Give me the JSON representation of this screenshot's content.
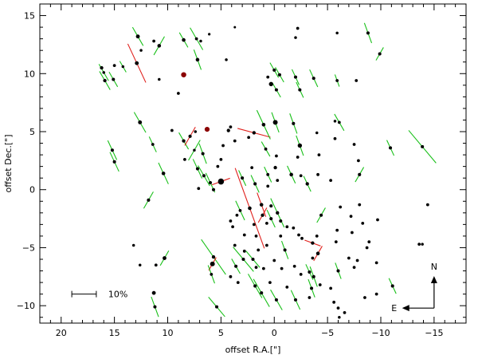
{
  "chart_data": {
    "type": "scatter",
    "title": "",
    "xlabel": "offset R.A.[\"]",
    "ylabel": "offset Dec.[\"]",
    "xlim": [
      22,
      -18
    ],
    "ylim": [
      -11.5,
      16
    ],
    "x_reversed": true,
    "x_ticks": [
      20,
      15,
      10,
      5,
      0,
      -5,
      -10,
      -15
    ],
    "y_ticks": [
      -10,
      -5,
      0,
      5,
      10,
      15
    ],
    "x_tick_labels": [
      "20",
      "15",
      "10",
      "5",
      "0",
      "−5",
      "−10",
      "−15"
    ],
    "y_tick_labels": [
      "−10",
      "−5",
      "0",
      "5",
      "10",
      "15"
    ],
    "grid": false,
    "colors": {
      "star": "#000000",
      "highlight": "#8b0000",
      "green_vector": "#19c019",
      "red_vector": "#e0201c"
    },
    "scale_bar": {
      "label": "10%",
      "length_arcsec": 2.3,
      "x": 18.0,
      "y": -9.0
    },
    "compass": {
      "north": "N",
      "east": "E",
      "x": -15.0,
      "y": -10.0,
      "length_arcsec": 3.0
    },
    "points": [
      {
        "x": 16.2,
        "y": 10.5,
        "size": 1.6
      },
      {
        "x": 15.9,
        "y": 9.4,
        "size": 1.6,
        "pol": 2.0,
        "angle": 120,
        "color": "green"
      },
      {
        "x": 15.0,
        "y": 10.7,
        "size": 1.4
      },
      {
        "x": 15.1,
        "y": 9.5,
        "size": 1.5,
        "pol": 1.6,
        "angle": 120,
        "color": "green"
      },
      {
        "x": 14.2,
        "y": 10.6,
        "size": 1.3,
        "pol": 1.2,
        "angle": 120,
        "color": "green"
      },
      {
        "x": 16.0,
        "y": 10.1,
        "size": 1.3,
        "pol": 1.8,
        "angle": 120,
        "color": "green"
      },
      {
        "x": 12.8,
        "y": 13.2,
        "size": 1.8,
        "pol": 2.0,
        "angle": 120,
        "color": "green"
      },
      {
        "x": 12.9,
        "y": 10.9,
        "size": 1.8,
        "pol": 4.0,
        "angle": 115,
        "color": "red"
      },
      {
        "x": 11.3,
        "y": 12.8,
        "size": 1.4
      },
      {
        "x": 10.8,
        "y": 12.4,
        "size": 1.7,
        "pol": 2.0,
        "angle": 60,
        "color": "green"
      },
      {
        "x": 8.5,
        "y": 12.9,
        "size": 1.7,
        "pol": 1.6,
        "angle": 120,
        "color": "green"
      },
      {
        "x": 7.3,
        "y": 13.0,
        "size": 1.4,
        "pol": 2.4,
        "angle": 120,
        "color": "green"
      },
      {
        "x": 6.9,
        "y": 12.8,
        "size": 1.3
      },
      {
        "x": 6.1,
        "y": 13.4,
        "size": 1.2
      },
      {
        "x": 4.5,
        "y": 11.2,
        "size": 1.3
      },
      {
        "x": 3.7,
        "y": 14.0,
        "size": 1.1
      },
      {
        "x": 8.5,
        "y": 9.9,
        "size": 2.4,
        "dark": true
      },
      {
        "x": 7.2,
        "y": 11.2,
        "size": 1.7,
        "pol": 2.0,
        "angle": 110,
        "color": "green"
      },
      {
        "x": 9.0,
        "y": 8.3,
        "size": 1.4
      },
      {
        "x": 10.8,
        "y": 9.5,
        "size": 1.3
      },
      {
        "x": 12.5,
        "y": 12.0,
        "size": 1.3
      },
      {
        "x": 12.6,
        "y": 5.8,
        "size": 1.8,
        "pol": 2.2,
        "angle": 120,
        "color": "green"
      },
      {
        "x": 15.2,
        "y": 3.4,
        "size": 1.5,
        "pol": 2.0,
        "angle": 115,
        "color": "green"
      },
      {
        "x": 15.0,
        "y": 2.4,
        "size": 1.5,
        "pol": 2.0,
        "angle": 115,
        "color": "green"
      },
      {
        "x": 11.4,
        "y": 3.9,
        "size": 1.4,
        "pol": 1.6,
        "angle": 115,
        "color": "green"
      },
      {
        "x": 10.4,
        "y": 1.4,
        "size": 1.7,
        "pol": 2.2,
        "angle": 115,
        "color": "green"
      },
      {
        "x": 11.8,
        "y": -0.9,
        "size": 1.5,
        "pol": 1.8,
        "angle": 60,
        "color": "green"
      },
      {
        "x": 9.6,
        "y": 5.1,
        "size": 1.4
      },
      {
        "x": 8.5,
        "y": 4.2,
        "size": 1.6,
        "pol": 1.8,
        "angle": 120,
        "color": "green"
      },
      {
        "x": 7.9,
        "y": 4.6,
        "size": 1.5,
        "pol": 2.0,
        "angle": 60,
        "color": "red"
      },
      {
        "x": 6.3,
        "y": 5.2,
        "size": 2.3,
        "dark": true
      },
      {
        "x": 7.4,
        "y": 5.0,
        "size": 1.3
      },
      {
        "x": 7.5,
        "y": 3.4,
        "size": 1.3,
        "pol": 2.2,
        "angle": 60,
        "color": "green"
      },
      {
        "x": 8.4,
        "y": 2.6,
        "size": 1.4
      },
      {
        "x": 6.7,
        "y": 3.1,
        "size": 1.5,
        "pol": 2.0,
        "angle": 110,
        "color": "green"
      },
      {
        "x": 7.2,
        "y": 1.8,
        "size": 1.5,
        "pol": 2.0,
        "angle": 115,
        "color": "green"
      },
      {
        "x": 6.6,
        "y": 1.2,
        "size": 1.5,
        "pol": 2.2,
        "angle": 120,
        "color": "green"
      },
      {
        "x": 6.0,
        "y": 0.6,
        "size": 1.5,
        "pol": 2.0,
        "angle": 115,
        "color": "green"
      },
      {
        "x": 7.1,
        "y": 0.1,
        "size": 1.4
      },
      {
        "x": 5.7,
        "y": 0.0,
        "size": 1.5
      },
      {
        "x": 5.0,
        "y": 0.7,
        "size": 2.8,
        "pol": 1.8,
        "angle": 20,
        "color": "red"
      },
      {
        "x": 5.3,
        "y": 2.0,
        "size": 1.4
      },
      {
        "x": 5.0,
        "y": 2.6,
        "size": 1.4
      },
      {
        "x": 4.3,
        "y": 5.1,
        "size": 1.6
      },
      {
        "x": 4.1,
        "y": 5.4,
        "size": 1.4
      },
      {
        "x": 3.7,
        "y": 4.2,
        "size": 1.4
      },
      {
        "x": 4.8,
        "y": 3.8,
        "size": 1.4
      },
      {
        "x": 2.4,
        "y": 4.5,
        "size": 1.4
      },
      {
        "x": 1.9,
        "y": 4.9,
        "size": 1.6,
        "pol": 3.2,
        "angle": 165,
        "color": "red"
      },
      {
        "x": 1.0,
        "y": 5.6,
        "size": 1.7,
        "pol": 3.0,
        "angle": 115,
        "color": "green"
      },
      {
        "x": -0.1,
        "y": 5.8,
        "size": 2.2,
        "pol": 2.0,
        "angle": 110,
        "color": "green"
      },
      {
        "x": 0.8,
        "y": 3.5,
        "size": 1.4,
        "pol": 1.6,
        "angle": 120,
        "color": "green"
      },
      {
        "x": -0.2,
        "y": 2.9,
        "size": 1.4
      },
      {
        "x": -1.8,
        "y": 5.7,
        "size": 1.5,
        "pol": 2.0,
        "angle": 110,
        "color": "green"
      },
      {
        "x": -2.4,
        "y": 3.8,
        "size": 2.0,
        "pol": 2.0,
        "angle": 110,
        "color": "green"
      },
      {
        "x": -2.2,
        "y": 2.8,
        "size": 1.4
      },
      {
        "x": -4.0,
        "y": 4.9,
        "size": 1.3
      },
      {
        "x": -4.2,
        "y": 3.0,
        "size": 1.4
      },
      {
        "x": -5.7,
        "y": 5.9,
        "size": 1.3
      },
      {
        "x": -6.1,
        "y": 5.8,
        "size": 1.4,
        "pol": 1.8,
        "angle": 120,
        "color": "green"
      },
      {
        "x": -5.7,
        "y": 4.4,
        "size": 1.4
      },
      {
        "x": -7.5,
        "y": 3.9,
        "size": 1.4
      },
      {
        "x": -7.9,
        "y": 2.5,
        "size": 1.4
      },
      {
        "x": -8.0,
        "y": 1.3,
        "size": 1.5,
        "pol": 1.6,
        "angle": 60,
        "color": "green"
      },
      {
        "x": -10.9,
        "y": 3.6,
        "size": 1.5,
        "pol": 1.6,
        "angle": 115,
        "color": "green"
      },
      {
        "x": -13.9,
        "y": 3.7,
        "size": 1.5,
        "pol": 4.0,
        "angle": 130,
        "color": "green"
      },
      {
        "x": -14.4,
        "y": -1.3,
        "size": 1.4
      },
      {
        "x": -13.9,
        "y": -4.7,
        "size": 1.3
      },
      {
        "x": 0.0,
        "y": 10.3,
        "size": 1.5,
        "pol": 1.6,
        "angle": 120,
        "color": "green"
      },
      {
        "x": 0.6,
        "y": 9.7,
        "size": 1.4
      },
      {
        "x": 0.3,
        "y": 9.1,
        "size": 2.0
      },
      {
        "x": -0.5,
        "y": 9.9,
        "size": 1.5,
        "pol": 1.6,
        "angle": 120,
        "color": "green"
      },
      {
        "x": -2.0,
        "y": 9.7,
        "size": 1.5,
        "pol": 1.6,
        "angle": 115,
        "color": "green"
      },
      {
        "x": -2.4,
        "y": 8.6,
        "size": 1.5,
        "pol": 1.6,
        "angle": 115,
        "color": "green"
      },
      {
        "x": -0.2,
        "y": 8.6,
        "size": 1.5,
        "pol": 1.6,
        "angle": 120,
        "color": "green"
      },
      {
        "x": -2.2,
        "y": 13.9,
        "size": 1.4
      },
      {
        "x": -2.0,
        "y": 13.1,
        "size": 1.3
      },
      {
        "x": -3.7,
        "y": 9.6,
        "size": 1.5,
        "pol": 1.8,
        "angle": 115,
        "color": "green"
      },
      {
        "x": -5.9,
        "y": 13.5,
        "size": 1.3
      },
      {
        "x": -5.9,
        "y": 9.4,
        "size": 1.4,
        "pol": 1.2,
        "angle": 110,
        "color": "green"
      },
      {
        "x": -7.7,
        "y": 9.4,
        "size": 1.4
      },
      {
        "x": -8.8,
        "y": 13.5,
        "size": 1.5,
        "pol": 2.0,
        "angle": 110,
        "color": "green"
      },
      {
        "x": -9.9,
        "y": 11.7,
        "size": 1.5,
        "pol": 1.4,
        "angle": 60,
        "color": "green"
      },
      {
        "x": 3.0,
        "y": 1.0,
        "size": 1.5,
        "pol": 1.6,
        "angle": 115,
        "color": "green"
      },
      {
        "x": 2.1,
        "y": 1.9,
        "size": 1.4
      },
      {
        "x": 1.8,
        "y": 0.5,
        "size": 1.5,
        "pol": 1.8,
        "angle": 115,
        "color": "green"
      },
      {
        "x": 0.6,
        "y": 1.3,
        "size": 1.4,
        "pol": 1.6,
        "angle": 115,
        "color": "green"
      },
      {
        "x": -0.1,
        "y": 1.9,
        "size": 1.6
      },
      {
        "x": 0.6,
        "y": 0.3,
        "size": 1.4
      },
      {
        "x": -0.3,
        "y": 0.8,
        "size": 1.4
      },
      {
        "x": -1.6,
        "y": 1.3,
        "size": 1.7,
        "pol": 1.8,
        "angle": 115,
        "color": "green"
      },
      {
        "x": -2.5,
        "y": 1.2,
        "size": 1.4
      },
      {
        "x": -3.1,
        "y": 0.5,
        "size": 1.6,
        "pol": 1.6,
        "angle": 115,
        "color": "green"
      },
      {
        "x": -4.1,
        "y": 1.3,
        "size": 1.4
      },
      {
        "x": -5.3,
        "y": 0.8,
        "size": 1.4
      },
      {
        "x": 3.2,
        "y": -1.8,
        "size": 1.4,
        "pol": 2.0,
        "angle": 115,
        "color": "green"
      },
      {
        "x": 2.3,
        "y": -1.6,
        "size": 1.7,
        "pol": 8.0,
        "angle": 110,
        "color": "red"
      },
      {
        "x": 1.2,
        "y": -1.3,
        "size": 1.7,
        "pol": 2.4,
        "angle": 110,
        "color": "red"
      },
      {
        "x": 0.3,
        "y": -1.4,
        "size": 1.5
      },
      {
        "x": 1.1,
        "y": -2.2,
        "size": 1.6,
        "pol": 1.6,
        "angle": 60,
        "color": "red"
      },
      {
        "x": 0.3,
        "y": -2.5,
        "size": 1.5,
        "pol": 1.8,
        "angle": 115,
        "color": "green"
      },
      {
        "x": -0.3,
        "y": -2.0,
        "size": 1.6,
        "pol": 3.0,
        "angle": 115,
        "color": "green"
      },
      {
        "x": -0.6,
        "y": -2.7,
        "size": 1.5
      },
      {
        "x": -1.2,
        "y": -3.2,
        "size": 1.4
      },
      {
        "x": -1.8,
        "y": -3.3,
        "size": 1.4
      },
      {
        "x": -0.6,
        "y": -4.0,
        "size": 1.4
      },
      {
        "x": -2.3,
        "y": -3.9,
        "size": 1.4
      },
      {
        "x": -3.6,
        "y": -4.6,
        "size": 1.6,
        "pol": 1.6,
        "angle": 160,
        "color": "red"
      },
      {
        "x": 3.5,
        "y": -2.2,
        "size": 1.4
      },
      {
        "x": 3.9,
        "y": -3.2,
        "size": 1.4
      },
      {
        "x": 2.8,
        "y": -3.9,
        "size": 1.4
      },
      {
        "x": 1.9,
        "y": -3.0,
        "size": 1.4
      },
      {
        "x": 0.7,
        "y": -2.9,
        "size": 1.4
      },
      {
        "x": 1.7,
        "y": -4.0,
        "size": 1.4
      },
      {
        "x": 4.1,
        "y": -2.7,
        "size": 1.4
      },
      {
        "x": 3.7,
        "y": -4.8,
        "size": 1.4
      },
      {
        "x": 2.8,
        "y": -5.3,
        "size": 1.4
      },
      {
        "x": 1.5,
        "y": -5.2,
        "size": 1.4
      },
      {
        "x": 0.7,
        "y": -4.8,
        "size": 1.4
      },
      {
        "x": -1.0,
        "y": -5.2,
        "size": 1.5,
        "pol": 1.8,
        "angle": 110,
        "color": "green"
      },
      {
        "x": -2.6,
        "y": -4.2,
        "size": 1.4
      },
      {
        "x": -4.0,
        "y": -4.0,
        "size": 1.4
      },
      {
        "x": -4.1,
        "y": -5.5,
        "size": 1.7,
        "pol": 1.6,
        "angle": 60,
        "color": "red"
      },
      {
        "x": -3.6,
        "y": -5.9,
        "size": 1.4
      },
      {
        "x": -5.9,
        "y": -3.5,
        "size": 1.4
      },
      {
        "x": -5.8,
        "y": -4.5,
        "size": 1.4
      },
      {
        "x": -7.3,
        "y": -3.7,
        "size": 1.4
      },
      {
        "x": -8.3,
        "y": -2.9,
        "size": 1.4
      },
      {
        "x": -8.9,
        "y": -4.5,
        "size": 1.4
      },
      {
        "x": -9.7,
        "y": -2.6,
        "size": 1.4
      },
      {
        "x": -4.4,
        "y": -2.2,
        "size": 1.5,
        "pol": 1.6,
        "angle": 60,
        "color": "green"
      },
      {
        "x": -7.2,
        "y": -2.3,
        "size": 1.4
      },
      {
        "x": -6.2,
        "y": -1.5,
        "size": 1.4
      },
      {
        "x": -8.0,
        "y": -1.3,
        "size": 1.4
      },
      {
        "x": -7.8,
        "y": -6.1,
        "size": 1.4
      },
      {
        "x": -9.6,
        "y": -6.3,
        "size": 1.4
      },
      {
        "x": -8.7,
        "y": -5.0,
        "size": 1.4
      },
      {
        "x": 5.7,
        "y": -5.8,
        "size": 1.6,
        "pol": 4.0,
        "angle": 125,
        "color": "green"
      },
      {
        "x": 5.8,
        "y": -6.4,
        "size": 2.2,
        "pol": 1.4,
        "angle": 60,
        "color": "red"
      },
      {
        "x": 5.9,
        "y": -7.3,
        "size": 1.4,
        "pol": 1.8,
        "angle": 110,
        "color": "green"
      },
      {
        "x": 3.6,
        "y": -6.6,
        "size": 1.5,
        "pol": 1.6,
        "angle": 120,
        "color": "green"
      },
      {
        "x": 2.9,
        "y": -6.0,
        "size": 1.5,
        "pol": 3.0,
        "angle": 130,
        "color": "green"
      },
      {
        "x": 4.1,
        "y": -7.5,
        "size": 1.4
      },
      {
        "x": 3.4,
        "y": -8.0,
        "size": 1.4
      },
      {
        "x": 2.0,
        "y": -6.0,
        "size": 1.5,
        "pol": 2.0,
        "angle": 130,
        "color": "green"
      },
      {
        "x": 1.7,
        "y": -6.7,
        "size": 1.4
      },
      {
        "x": 1.0,
        "y": -6.8,
        "size": 1.4
      },
      {
        "x": 0.0,
        "y": -6.1,
        "size": 1.4
      },
      {
        "x": -0.7,
        "y": -6.8,
        "size": 1.4
      },
      {
        "x": -1.9,
        "y": -6.6,
        "size": 1.4
      },
      {
        "x": -2.5,
        "y": -7.3,
        "size": 1.4
      },
      {
        "x": -3.3,
        "y": -7.1,
        "size": 1.5,
        "pol": 1.6,
        "angle": 115,
        "color": "green"
      },
      {
        "x": -3.7,
        "y": -7.5,
        "size": 1.5,
        "pol": 2.0,
        "angle": 110,
        "color": "green"
      },
      {
        "x": -3.5,
        "y": -8.5,
        "size": 1.5,
        "pol": 1.8,
        "angle": 110,
        "color": "green"
      },
      {
        "x": -3.3,
        "y": -9.3,
        "size": 1.4
      },
      {
        "x": 1.8,
        "y": -8.3,
        "size": 1.5,
        "pol": 2.6,
        "angle": 120,
        "color": "green"
      },
      {
        "x": 1.2,
        "y": -8.9,
        "size": 1.5,
        "pol": 3.0,
        "angle": 120,
        "color": "green"
      },
      {
        "x": 0.4,
        "y": -8.0,
        "size": 1.4
      },
      {
        "x": -0.2,
        "y": -9.5,
        "size": 1.5,
        "pol": 2.2,
        "angle": 120,
        "color": "green"
      },
      {
        "x": -2.0,
        "y": -9.5,
        "size": 1.5,
        "pol": 2.0,
        "angle": 115,
        "color": "green"
      },
      {
        "x": -1.2,
        "y": -8.4,
        "size": 1.4
      },
      {
        "x": -4.3,
        "y": -8.2,
        "size": 1.4
      },
      {
        "x": -5.3,
        "y": -8.5,
        "size": 1.4
      },
      {
        "x": -6.0,
        "y": -7.0,
        "size": 1.5,
        "pol": 1.6,
        "angle": 110,
        "color": "green"
      },
      {
        "x": -7.0,
        "y": -5.9,
        "size": 1.4
      },
      {
        "x": -7.5,
        "y": -6.7,
        "size": 1.4
      },
      {
        "x": -5.6,
        "y": -9.7,
        "size": 1.4
      },
      {
        "x": -6.0,
        "y": -10.2,
        "size": 1.4
      },
      {
        "x": -6.6,
        "y": -10.6,
        "size": 1.4
      },
      {
        "x": -8.5,
        "y": -9.3,
        "size": 1.4
      },
      {
        "x": -9.6,
        "y": -9.0,
        "size": 1.4
      },
      {
        "x": -11.1,
        "y": -8.3,
        "size": 1.5,
        "pol": 1.6,
        "angle": 115,
        "color": "green"
      },
      {
        "x": -13.6,
        "y": -4.7,
        "size": 1.4
      },
      {
        "x": 13.2,
        "y": -4.8,
        "size": 1.3
      },
      {
        "x": 12.6,
        "y": -6.5,
        "size": 1.3
      },
      {
        "x": 11.1,
        "y": -6.5,
        "size": 1.4
      },
      {
        "x": 10.3,
        "y": -5.9,
        "size": 1.8,
        "pol": 1.6,
        "angle": 60,
        "color": "green"
      },
      {
        "x": 11.3,
        "y": -8.9,
        "size": 1.8
      },
      {
        "x": 11.2,
        "y": -10.1,
        "size": 1.5,
        "pol": 2.0,
        "angle": 110,
        "color": "green"
      },
      {
        "x": 5.4,
        "y": -10.1,
        "size": 1.5,
        "pol": 2.4,
        "angle": 130,
        "color": "green"
      },
      {
        "x": -6.1,
        "y": -11.0,
        "size": 1.3
      }
    ]
  }
}
